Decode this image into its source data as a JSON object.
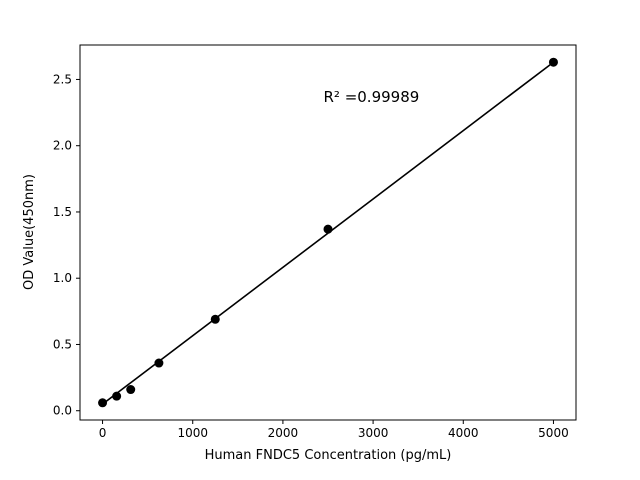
{
  "chart_data": {
    "type": "scatter",
    "title": "",
    "xlabel": "Human FNDC5 Concentration (pg/mL)",
    "ylabel": "OD Value(450nm)",
    "annotation": "R² =0.99989",
    "annotation_xy": [
      2450,
      2.33
    ],
    "x": [
      0,
      156.25,
      312.5,
      625,
      1250,
      2500,
      5000
    ],
    "y": [
      0.06,
      0.11,
      0.16,
      0.36,
      0.69,
      1.37,
      2.63
    ],
    "fit_line": {
      "x": [
        0,
        5000
      ],
      "y": [
        0.05,
        2.63
      ]
    },
    "xlim": [
      -250,
      5250
    ],
    "ylim": [
      -0.07,
      2.76
    ],
    "xticks": [
      0,
      1000,
      2000,
      3000,
      4000,
      5000
    ],
    "xtick_labels": [
      "0",
      "1000",
      "2000",
      "3000",
      "4000",
      "5000"
    ],
    "yticks": [
      0.0,
      0.5,
      1.0,
      1.5,
      2.0,
      2.5
    ],
    "ytick_labels": [
      "0.0",
      "0.5",
      "1.0",
      "1.5",
      "2.0",
      "2.5"
    ],
    "grid": false,
    "legend": null,
    "marker_color": "#000000",
    "line_color": "#000000",
    "background_color": "#ffffff"
  }
}
